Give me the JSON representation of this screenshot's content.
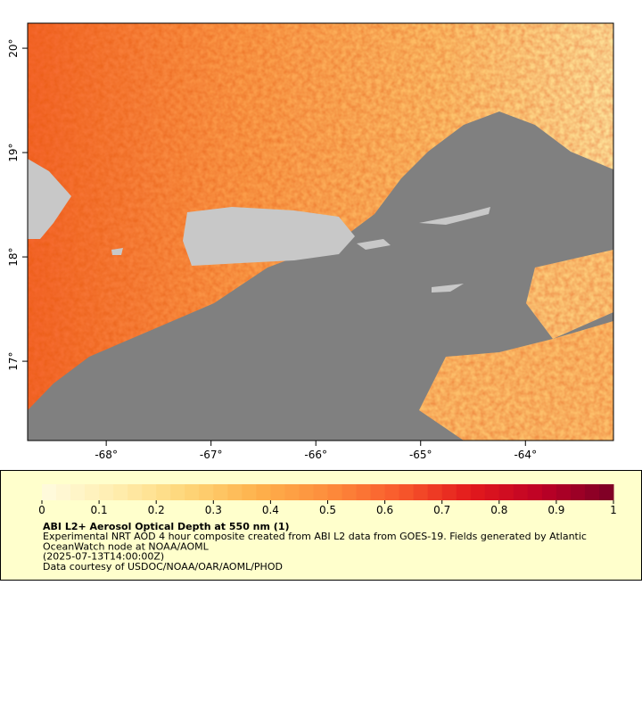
{
  "map": {
    "xlim": [
      -68.75,
      -63.16
    ],
    "ylim": [
      16.24,
      20.24
    ],
    "xticks": [
      {
        "value": -68,
        "label": "-68°"
      },
      {
        "value": -67,
        "label": "-67°"
      },
      {
        "value": -66,
        "label": "-66°"
      },
      {
        "value": -65,
        "label": "-65°"
      },
      {
        "value": -64,
        "label": "-64°"
      }
    ],
    "yticks": [
      {
        "value": 17,
        "label": "17°"
      },
      {
        "value": 18,
        "label": "18°"
      },
      {
        "value": 19,
        "label": "19°"
      },
      {
        "value": 20,
        "label": "20°"
      }
    ]
  },
  "colorbar": {
    "range": [
      0,
      1
    ],
    "ticks": [
      0,
      0.1,
      0.2,
      0.3,
      0.4,
      0.5,
      0.6,
      0.7,
      0.8,
      0.9,
      1
    ],
    "colormap": [
      "#fffbe0",
      "#ffeeb0",
      "#fed77a",
      "#feb24c",
      "#fd8d3c",
      "#f85a2c",
      "#e31a1c",
      "#bd0026",
      "#7a0026"
    ]
  },
  "caption": {
    "title": "ABI L2+ Aerosol Optical Depth at 550 nm (1)",
    "lines": [
      "Experimental NRT AOD 4 hour composite created from ABI L2 data from GOES-19. Fields generated by Atlantic",
      "OceanWatch node at NOAA/AOML",
      "(2025-07-13T14:00:00Z)",
      "Data courtesy of USDOC/NOAA/OAR/AOML/PHOD"
    ]
  }
}
